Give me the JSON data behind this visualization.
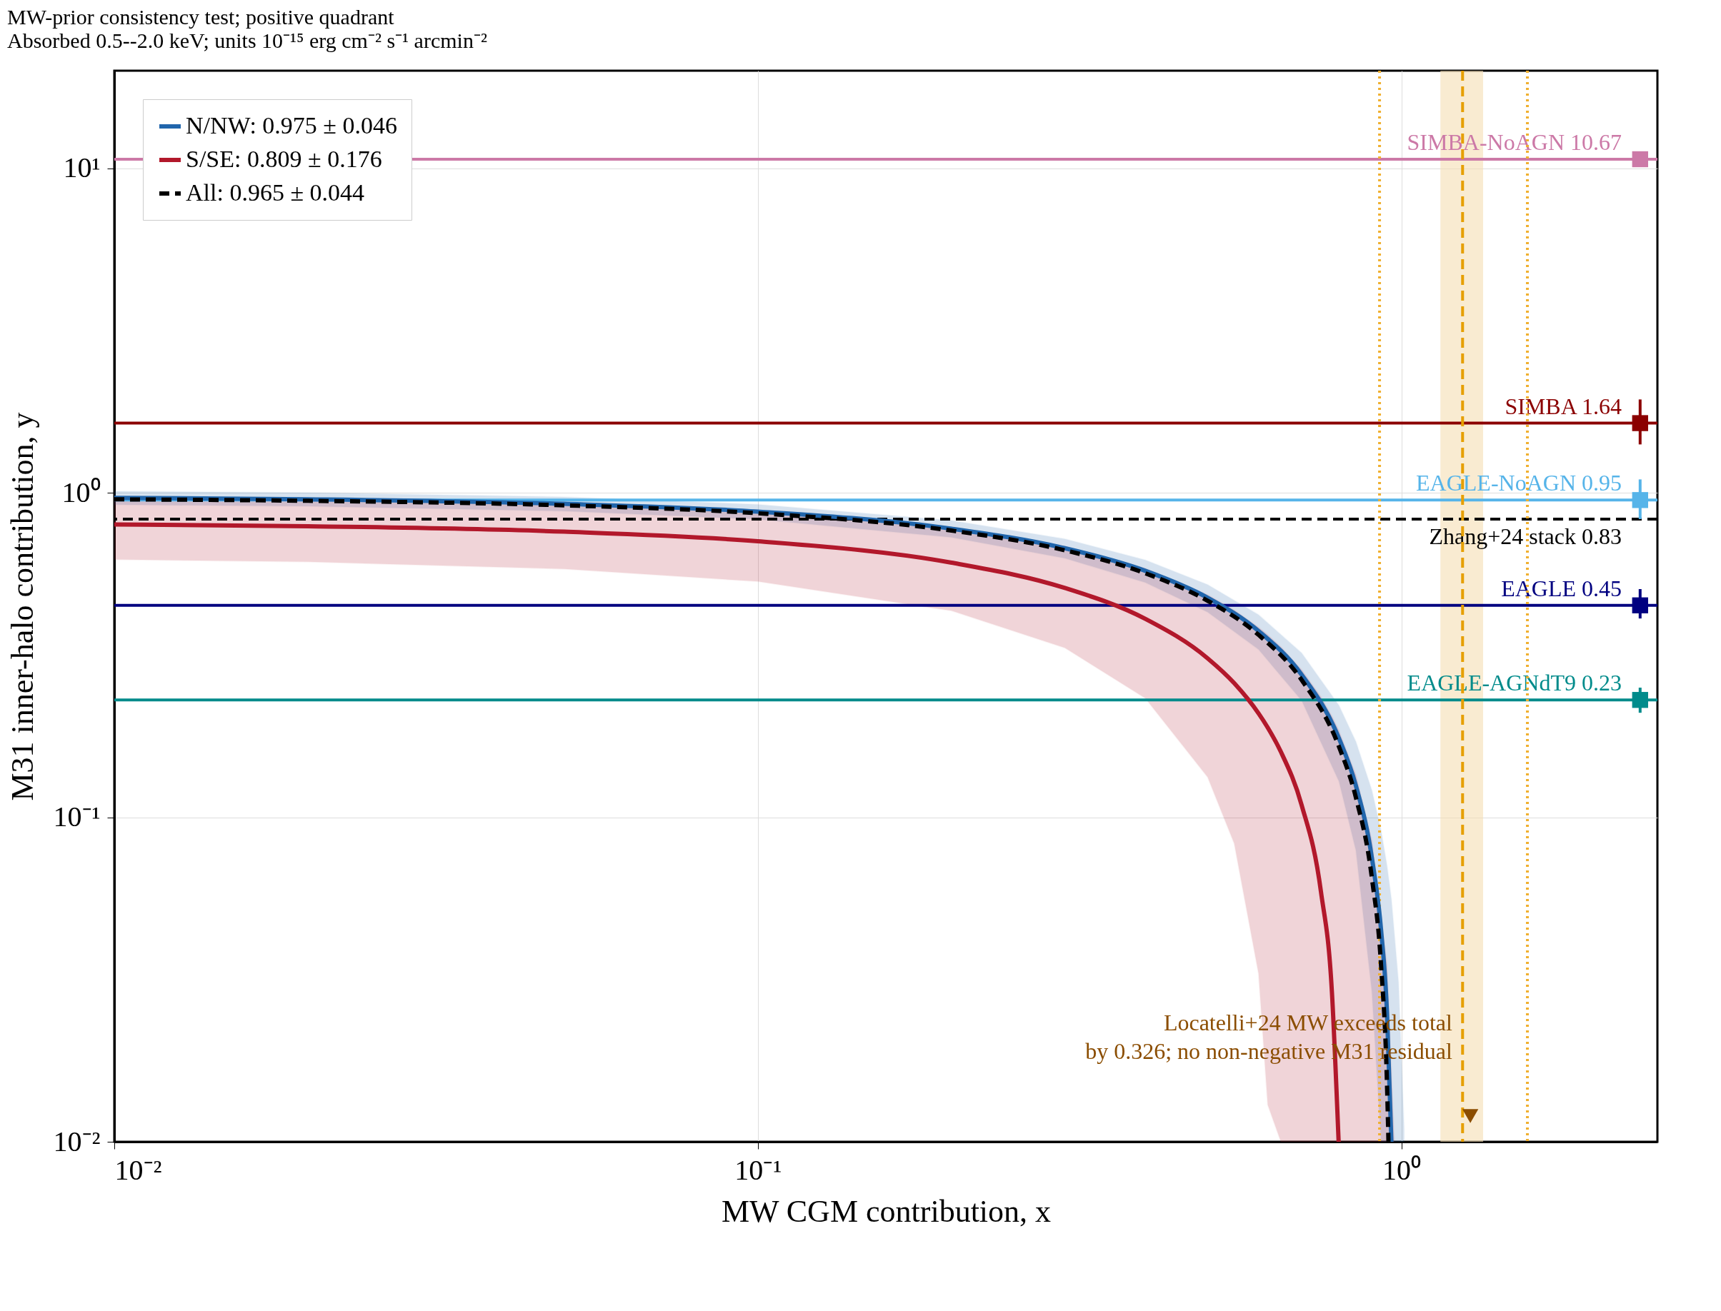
{
  "chart_data": {
    "type": "line",
    "title": "MW-prior consistency test; positive quadrant",
    "subtitle": "Absorbed 0.5--2.0 keV; units 10⁻¹⁵ erg cm⁻² s⁻¹ arcmin⁻²",
    "xlabel": "MW CGM contribution, x",
    "ylabel": "M31 inner-halo contribution, y",
    "log": "xy",
    "grid": true,
    "legend": "top left",
    "xlim": [
      0.01,
      2.5
    ],
    "ylim": [
      0.01,
      20
    ],
    "xticks": [
      {
        "value": 0.01,
        "label": "10⁻²"
      },
      {
        "value": 0.1,
        "label": "10⁻¹"
      },
      {
        "value": 1,
        "label": "10⁰"
      }
    ],
    "yticks": [
      {
        "value": 0.01,
        "label": "10⁻²"
      },
      {
        "value": 0.1,
        "label": "10⁻¹"
      },
      {
        "value": 1,
        "label": "10⁰"
      },
      {
        "value": 10,
        "label": "10¹"
      }
    ],
    "series": [
      {
        "name": "N/NW: 0.975 ± 0.046",
        "type": "line",
        "color": "#2166ac",
        "line_style": "solid",
        "x": [
          0.01,
          0.02,
          0.05,
          0.1,
          0.2,
          0.3,
          0.4,
          0.5,
          0.6,
          0.7,
          0.8,
          0.85,
          0.9,
          0.93,
          0.95,
          0.965,
          0.99,
          1.01
        ],
        "values": [
          0.965,
          0.955,
          0.925,
          0.875,
          0.775,
          0.675,
          0.575,
          0.475,
          0.375,
          0.275,
          0.175,
          0.125,
          0.075,
          0.045,
          0.025,
          0.01,
          null,
          null
        ],
        "lower": [
          0.919,
          0.909,
          0.879,
          0.829,
          0.729,
          0.629,
          0.529,
          0.429,
          0.329,
          0.229,
          0.129,
          0.079,
          0.029,
          0.01,
          0.01,
          0.01,
          0.01,
          0.01
        ],
        "upper": [
          1.011,
          1.001,
          0.971,
          0.921,
          0.821,
          0.721,
          0.621,
          0.521,
          0.421,
          0.321,
          0.221,
          0.171,
          0.121,
          0.091,
          0.071,
          0.056,
          0.031,
          0.011
        ]
      },
      {
        "name": "S/SE: 0.809 ± 0.176",
        "type": "line",
        "color": "#b2182b",
        "line_style": "solid",
        "x": [
          0.01,
          0.02,
          0.05,
          0.1,
          0.2,
          0.3,
          0.4,
          0.5,
          0.55,
          0.6,
          0.62,
          0.65,
          0.7,
          0.75,
          0.78,
          0.799,
          0.85,
          0.9,
          0.95,
          0.975
        ],
        "values": [
          0.799,
          0.789,
          0.759,
          0.709,
          0.609,
          0.509,
          0.409,
          0.309,
          0.259,
          0.209,
          0.189,
          0.159,
          0.109,
          0.059,
          0.029,
          0.01,
          null,
          null,
          null,
          null
        ],
        "lower": [
          0.623,
          0.613,
          0.583,
          0.533,
          0.433,
          0.333,
          0.233,
          0.133,
          0.083,
          0.033,
          0.013,
          0.01,
          0.01,
          0.01,
          0.01,
          0.01,
          0.01,
          0.01,
          0.01,
          0.01
        ],
        "upper": [
          0.975,
          0.965,
          0.935,
          0.885,
          0.785,
          0.685,
          0.585,
          0.485,
          0.435,
          0.385,
          0.365,
          0.335,
          0.285,
          0.235,
          0.205,
          0.186,
          0.135,
          0.085,
          0.035,
          0.01
        ]
      },
      {
        "name": "All: 0.965 ± 0.044",
        "type": "line",
        "color": "#000000",
        "line_style": "dashed",
        "x": [
          0.01,
          0.02,
          0.05,
          0.1,
          0.2,
          0.3,
          0.4,
          0.5,
          0.6,
          0.7,
          0.8,
          0.85,
          0.9,
          0.93,
          0.95,
          0.955
        ],
        "values": [
          0.955,
          0.945,
          0.915,
          0.865,
          0.765,
          0.665,
          0.565,
          0.465,
          0.365,
          0.265,
          0.165,
          0.115,
          0.065,
          0.035,
          0.015,
          0.01
        ]
      },
      {
        "type": "scatter",
        "marker": "square",
        "x": [
          2.35,
          2.35,
          2.35,
          2.35,
          2.35
        ],
        "values": [
          10.67,
          1.64,
          0.95,
          0.45,
          0.23
        ],
        "colors": [
          "#cc79a7",
          "#8b0000",
          "#56b4e9",
          "#000080",
          "#008b8b"
        ],
        "errors": [
          null,
          [
            1.41,
            1.94
          ],
          [
            0.83,
            1.1
          ],
          [
            0.41,
            0.505
          ],
          [
            0.21,
            0.251
          ]
        ]
      },
      {
        "type": "scatter",
        "marker": "triangle",
        "color": "#8b4d00",
        "x": [
          1.28
        ],
        "values": [
          0.012
        ]
      }
    ],
    "ref_lines": [
      {
        "axis": "y",
        "value": 10.67,
        "label": "SIMBA-NoAGN  10.67",
        "color": "#cc79a7",
        "line_style": "solid"
      },
      {
        "axis": "y",
        "value": 1.64,
        "label": "SIMBA  1.64",
        "color": "#8b0000",
        "line_style": "solid"
      },
      {
        "axis": "y",
        "value": 0.95,
        "label": "EAGLE-NoAGN  0.95",
        "color": "#56b4e9",
        "line_style": "solid"
      },
      {
        "axis": "y",
        "value": 0.83,
        "label": "Zhang+24 stack  0.83",
        "color": "#000000",
        "line_style": "dashed"
      },
      {
        "axis": "y",
        "value": 0.45,
        "label": "EAGLE  0.45",
        "color": "#000080",
        "line_style": "solid"
      },
      {
        "axis": "y",
        "value": 0.23,
        "label": "EAGLE-AGNdT9  0.23",
        "color": "#008b8b",
        "line_style": "solid"
      },
      {
        "axis": "x",
        "value": 0.925,
        "color": "#f0b030",
        "line_style": "dotted"
      },
      {
        "axis": "x",
        "value": 1.57,
        "color": "#f0b030",
        "line_style": "dotted"
      },
      {
        "axis": "x",
        "value": 1.245,
        "color": "#e69f00",
        "line_style": "dashed"
      }
    ],
    "bands": [
      {
        "axis": "x",
        "from": 1.15,
        "to": 1.34,
        "color": "#f5deb3"
      }
    ],
    "annotations": [
      "Locatelli+24 MW exceeds total",
      "by 0.326; no non-negative M31 residual"
    ]
  }
}
